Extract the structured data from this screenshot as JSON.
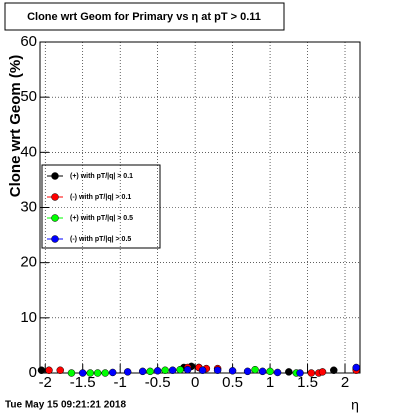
{
  "chart_data": {
    "type": "scatter",
    "title": "Clone wrt Geom for Primary vs   η at pT > 0.11",
    "y_label": "Clone wrt Geom (%)",
    "x_label": "η",
    "timestamp": "Tue May 15 09:21:21 2018",
    "xlim": [
      -2.07,
      2.2
    ],
    "ylim": [
      0,
      60
    ],
    "xticks": [
      -2,
      -1.5,
      -1,
      -0.5,
      0,
      0.5,
      1,
      1.5,
      2
    ],
    "yticks": [
      0,
      10,
      20,
      30,
      40,
      50,
      60
    ],
    "grid": true,
    "legend": "upper-left",
    "series": [
      {
        "name": "(+) with pT/|q| > 0.1",
        "color": "#000000",
        "x": [
          -2.05,
          -0.15,
          -0.05,
          0.05,
          1.25,
          1.85,
          2.15
        ],
        "values": [
          0.5,
          1,
          1.2,
          1,
          0.2,
          0.5,
          0.8
        ]
      },
      {
        "name": "(-) with pT/|q| > 0.1",
        "color": "#ff0000",
        "x": [
          -1.95,
          -1.8,
          -0.1,
          0.05,
          0.15,
          0.3,
          1.55,
          1.65,
          1.7,
          2.15
        ],
        "values": [
          0.5,
          0.5,
          1,
          1,
          0.8,
          0.8,
          0,
          0,
          0.2,
          0.5
        ]
      },
      {
        "name": "(+) with pT/|q| > 0.5",
        "color": "#00ff00",
        "x": [
          -1.65,
          -1.4,
          -1.3,
          -1.2,
          -0.6,
          -0.4,
          -0.2,
          0.8,
          1.0,
          1.35
        ],
        "values": [
          0,
          0,
          0,
          0,
          0.3,
          0.5,
          0.6,
          0.6,
          0.3,
          0
        ]
      },
      {
        "name": "(-) with pT/|q| > 0.5",
        "color": "#0000ff",
        "x": [
          -1.5,
          -1.1,
          -0.9,
          -0.7,
          -0.5,
          -0.3,
          -0.1,
          0.1,
          0.3,
          0.5,
          0.7,
          0.9,
          1.1,
          1.4,
          2.15
        ],
        "values": [
          0,
          0.1,
          0.2,
          0.3,
          0.4,
          0.5,
          0.6,
          0.5,
          0.5,
          0.4,
          0.3,
          0.3,
          0.1,
          0,
          1
        ]
      }
    ]
  }
}
